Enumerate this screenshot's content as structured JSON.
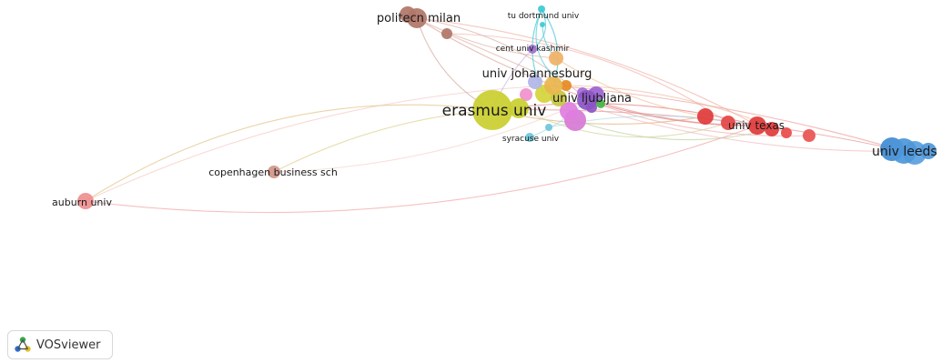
{
  "nodes": [
    {
      "id": "erasmus",
      "label": "erasmus univ",
      "color": "#c9cf2f"
    },
    {
      "id": "leeds",
      "label": "univ leeds",
      "color": "#4e97d9"
    },
    {
      "id": "texas",
      "label": "univ texas",
      "color": "#e03b3b"
    },
    {
      "id": "ljubljana",
      "label": "univ ljubljana",
      "color": "#8b55c4"
    },
    {
      "id": "johannesburg",
      "label": "univ johannesburg",
      "color": "#eab64f"
    },
    {
      "id": "politecn",
      "label": "politecn milan",
      "color": "#b07668"
    },
    {
      "id": "dortmund",
      "label": "tu dortmund univ",
      "color": "#3ec8d6"
    },
    {
      "id": "kashmir",
      "label": "cent univ kashmir",
      "color": "#9a6fcf"
    },
    {
      "id": "syracuse",
      "label": "syracuse univ",
      "color": "#6ec6d9"
    },
    {
      "id": "copenhagen",
      "label": "copenhagen business sch",
      "color": "#d2968a"
    },
    {
      "id": "auburn",
      "label": "auburn univ",
      "color": "#ef8f8f"
    }
  ],
  "brand": {
    "label": "VOSviewer",
    "icon": "vosviewer-logo-icon"
  }
}
